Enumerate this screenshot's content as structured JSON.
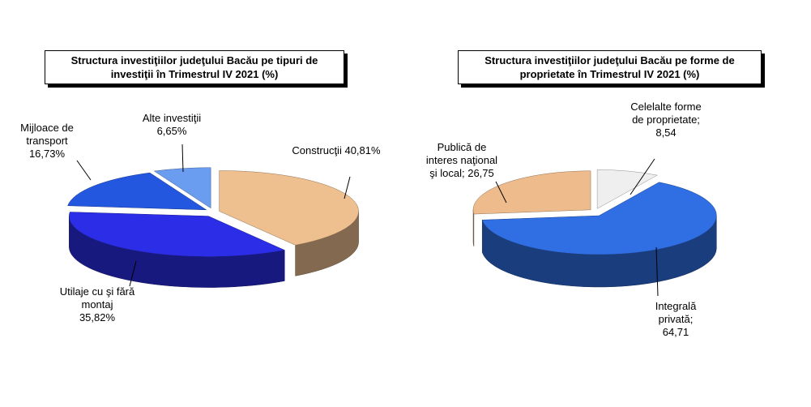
{
  "chart_data": [
    {
      "type": "pie",
      "title": "Structura investiţiilor judeţului Bacău pe tipuri de investiţii în Trimestrul IV 2021 (%)",
      "categories": [
        "Construcţii",
        "Utilaje cu şi fără montaj",
        "Mijloace de transport",
        "Alte investiţii"
      ],
      "values": [
        40.81,
        35.82,
        16.73,
        6.65
      ],
      "value_labels": [
        "40,81%",
        "35,82%",
        "16,73%",
        "6,65%"
      ],
      "colors": [
        "#eebf8f",
        "#2b2ee6",
        "#2457e0",
        "#6a9cf0"
      ]
    },
    {
      "type": "pie",
      "title": "Structura investiţiilor judeţului Bacău pe forme de proprietate în Trimestrul IV 2021 (%)",
      "categories": [
        "Celelalte forme de proprietate;",
        "Integrală privată;",
        "Publică de interes naţional şi local;"
      ],
      "values": [
        8.54,
        64.71,
        26.75
      ],
      "value_labels": [
        "8,54",
        "64,71",
        "26,75"
      ],
      "colors": [
        "#efefef",
        "#2f6ee3",
        "#eebb8c"
      ]
    }
  ]
}
